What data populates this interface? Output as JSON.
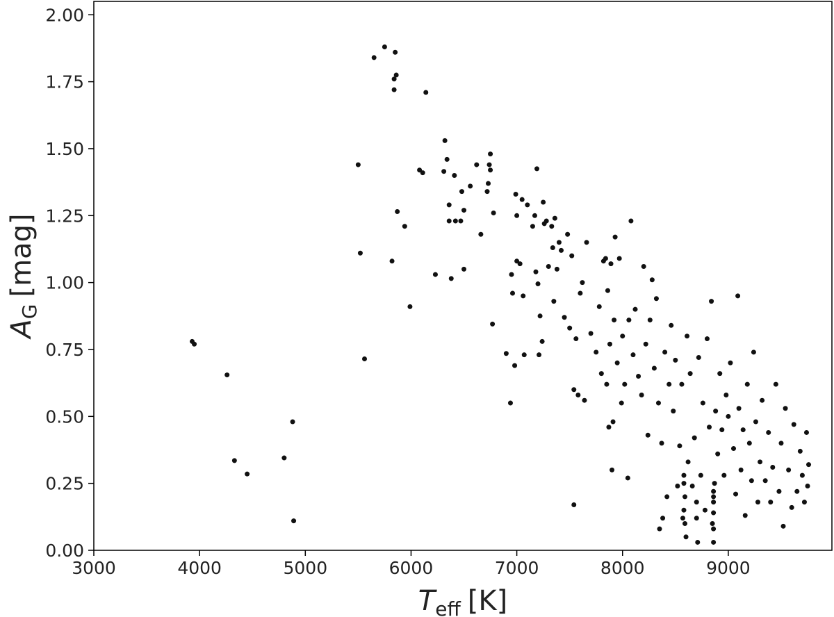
{
  "chart_data": {
    "type": "scatter",
    "x_label": {
      "main": "T",
      "sub": "eff",
      "unit": "[K]"
    },
    "y_label": {
      "main": "A",
      "sub": "G",
      "unit": "[mag]"
    },
    "xlim": [
      3000,
      9980
    ],
    "xticks": [
      3000,
      4000,
      5000,
      6000,
      7000,
      8000,
      9000
    ],
    "ylim": [
      0,
      2.05
    ],
    "yticks": [
      {
        "value": 0,
        "label": "0.00"
      },
      {
        "value": 0.25,
        "label": "0.25"
      },
      {
        "value": 0.5,
        "label": "0.50"
      },
      {
        "value": 0.75,
        "label": "0.75"
      },
      {
        "value": 1,
        "label": "1.00"
      },
      {
        "value": 1.25,
        "label": "1.25"
      },
      {
        "value": 1.5,
        "label": "1.50"
      },
      {
        "value": 1.75,
        "label": "1.75"
      },
      {
        "value": 2,
        "label": "2.00"
      }
    ],
    "grid": false,
    "color": "#111111",
    "x": [
      3930,
      3950,
      4260,
      4330,
      4450,
      4800,
      4880,
      4890,
      5500,
      5520,
      5560,
      5650,
      5750,
      5820,
      5840,
      5840,
      5850,
      5860,
      5870,
      5940,
      5990,
      6140,
      6080,
      6110,
      6230,
      6310,
      6320,
      6340,
      6360,
      6360,
      6380,
      6410,
      6420,
      6470,
      6480,
      6500,
      6500,
      6560,
      6620,
      6660,
      6720,
      6730,
      6740,
      6750,
      6750,
      6770,
      6780,
      6900,
      6940,
      6950,
      6960,
      6980,
      6990,
      7000,
      7000,
      7030,
      7050,
      7060,
      7070,
      7100,
      7150,
      7170,
      7180,
      7190,
      7200,
      7210,
      7220,
      7240,
      7250,
      7260,
      7280,
      7300,
      7330,
      7340,
      7350,
      7360,
      7380,
      7400,
      7420,
      7450,
      7480,
      7500,
      7520,
      7540,
      7540,
      7560,
      7580,
      7600,
      7620,
      7640,
      7660,
      7700,
      7750,
      7780,
      7800,
      7820,
      7840,
      7850,
      7860,
      7870,
      7880,
      7890,
      7900,
      7910,
      7920,
      7930,
      7950,
      7970,
      7990,
      8000,
      8020,
      8050,
      8060,
      8080,
      8100,
      8120,
      8150,
      8180,
      8200,
      8220,
      8240,
      8260,
      8280,
      8300,
      8320,
      8340,
      8350,
      8370,
      8380,
      8400,
      8420,
      8440,
      8460,
      8480,
      8500,
      8520,
      8540,
      8560,
      8570,
      8580,
      8590,
      8600,
      8610,
      8620,
      8640,
      8660,
      8680,
      8700,
      8700,
      8710,
      8720,
      8740,
      8760,
      8780,
      8800,
      8820,
      8840,
      8850,
      8860,
      8860,
      8870,
      8880,
      8900,
      8920,
      8940,
      8960,
      8980,
      9000,
      9020,
      9050,
      9070,
      9090,
      9100,
      9120,
      9140,
      9160,
      9180,
      9200,
      9220,
      9240,
      9260,
      9280,
      9300,
      9320,
      9350,
      9380,
      9400,
      9420,
      9450,
      9480,
      9500,
      9520,
      9540,
      9570,
      9600,
      9620,
      9650,
      9680,
      9700,
      9720,
      9740,
      9760,
      9750,
      8580,
      8590,
      8580,
      8860,
      8860,
      8860,
      8860
    ],
    "values": [
      0.78,
      0.77,
      0.655,
      0.335,
      0.285,
      0.345,
      0.48,
      0.11,
      1.44,
      1.11,
      0.715,
      1.84,
      1.88,
      1.08,
      1.72,
      1.76,
      1.86,
      1.775,
      1.265,
      1.21,
      0.91,
      1.71,
      1.42,
      1.41,
      1.03,
      1.415,
      1.53,
      1.46,
      1.29,
      1.23,
      1.015,
      1.4,
      1.23,
      1.23,
      1.34,
      1.05,
      1.27,
      1.36,
      1.44,
      1.18,
      1.34,
      1.37,
      1.44,
      1.42,
      1.48,
      0.845,
      1.26,
      0.735,
      0.55,
      1.03,
      0.96,
      0.69,
      1.33,
      1.08,
      1.25,
      1.07,
      1.31,
      0.95,
      0.73,
      1.29,
      1.21,
      1.25,
      1.04,
      1.425,
      0.995,
      0.73,
      0.875,
      0.78,
      1.3,
      1.22,
      1.23,
      1.06,
      1.21,
      1.13,
      0.93,
      1.24,
      1.05,
      1.15,
      1.12,
      0.87,
      1.18,
      0.83,
      1.1,
      0.6,
      0.17,
      0.79,
      0.58,
      0.96,
      1.0,
      0.56,
      1.15,
      0.81,
      0.74,
      0.91,
      0.66,
      1.08,
      1.09,
      0.62,
      0.97,
      0.46,
      0.77,
      1.07,
      0.3,
      0.48,
      0.86,
      1.17,
      0.7,
      1.09,
      0.55,
      0.8,
      0.62,
      0.27,
      0.86,
      1.23,
      0.73,
      0.9,
      0.65,
      0.58,
      1.06,
      0.77,
      0.43,
      0.86,
      1.01,
      0.68,
      0.94,
      0.55,
      0.08,
      0.4,
      0.12,
      0.74,
      0.2,
      0.62,
      0.84,
      0.52,
      0.71,
      0.24,
      0.39,
      0.62,
      0.12,
      0.28,
      0.2,
      0.05,
      0.8,
      0.33,
      0.66,
      0.24,
      0.42,
      0.18,
      0.12,
      0.03,
      0.72,
      0.28,
      0.55,
      0.15,
      0.79,
      0.46,
      0.93,
      0.1,
      0.2,
      0.03,
      0.25,
      0.52,
      0.36,
      0.66,
      0.45,
      0.28,
      0.58,
      0.5,
      0.7,
      0.38,
      0.21,
      0.95,
      0.53,
      0.3,
      0.45,
      0.13,
      0.62,
      0.4,
      0.26,
      0.74,
      0.48,
      0.18,
      0.33,
      0.56,
      0.26,
      0.44,
      0.18,
      0.31,
      0.62,
      0.22,
      0.4,
      0.09,
      0.53,
      0.3,
      0.16,
      0.47,
      0.22,
      0.37,
      0.28,
      0.18,
      0.44,
      0.32,
      0.24,
      0.15,
      0.1,
      0.25,
      0.08,
      0.14,
      0.18,
      0.22
    ]
  }
}
